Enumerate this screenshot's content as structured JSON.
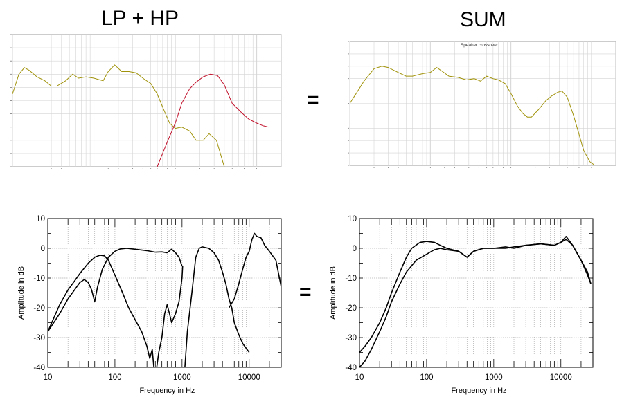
{
  "headings": {
    "left": "LP + HP",
    "right": "SUM"
  },
  "equals": [
    "=",
    "="
  ],
  "colors": {
    "yellow_trace": "#a0920a",
    "red_trace": "#c0102a",
    "black_trace": "#000000",
    "grid": "#d4d4d4"
  },
  "chart_data": [
    {
      "id": "top-left",
      "type": "line",
      "title": "",
      "xscale": "log",
      "xlim": [
        10,
        20000
      ],
      "ylim": [
        0,
        1
      ],
      "y_note": "unreadable tick labels; normalized vertical scale",
      "series": [
        {
          "color": "#a0920a",
          "points": [
            [
              10,
              0.55
            ],
            [
              12,
              0.7
            ],
            [
              14,
              0.75
            ],
            [
              16,
              0.73
            ],
            [
              20,
              0.68
            ],
            [
              25,
              0.65
            ],
            [
              30,
              0.61
            ],
            [
              35,
              0.61
            ],
            [
              45,
              0.65
            ],
            [
              55,
              0.7
            ],
            [
              65,
              0.67
            ],
            [
              80,
              0.68
            ],
            [
              100,
              0.67
            ],
            [
              130,
              0.65
            ],
            [
              150,
              0.72
            ],
            [
              180,
              0.77
            ],
            [
              220,
              0.72
            ],
            [
              270,
              0.72
            ],
            [
              330,
              0.71
            ],
            [
              420,
              0.66
            ],
            [
              500,
              0.63
            ],
            [
              600,
              0.55
            ],
            [
              700,
              0.45
            ],
            [
              850,
              0.33
            ],
            [
              1000,
              0.29
            ],
            [
              1200,
              0.3
            ],
            [
              1500,
              0.27
            ],
            [
              1800,
              0.2
            ],
            [
              2200,
              0.2
            ],
            [
              2600,
              0.25
            ],
            [
              3200,
              0.2
            ],
            [
              4000,
              0.0
            ]
          ]
        },
        {
          "color": "#c0102a",
          "points": [
            [
              600,
              0.0
            ],
            [
              800,
              0.19
            ],
            [
              1000,
              0.33
            ],
            [
              1200,
              0.48
            ],
            [
              1500,
              0.59
            ],
            [
              1800,
              0.64
            ],
            [
              2200,
              0.68
            ],
            [
              2700,
              0.7
            ],
            [
              3300,
              0.69
            ],
            [
              4000,
              0.62
            ],
            [
              5000,
              0.48
            ],
            [
              6500,
              0.41
            ],
            [
              8000,
              0.36
            ],
            [
              10000,
              0.33
            ],
            [
              12000,
              0.31
            ],
            [
              14000,
              0.3
            ]
          ]
        }
      ]
    },
    {
      "id": "top-right",
      "type": "line",
      "title": "Speaker crossover",
      "xscale": "log",
      "xlim": [
        10,
        20000
      ],
      "ylim": [
        0,
        1
      ],
      "y_note": "unreadable tick labels; normalized vertical scale",
      "series": [
        {
          "color": "#a0920a",
          "points": [
            [
              10,
              0.5
            ],
            [
              12,
              0.58
            ],
            [
              15,
              0.68
            ],
            [
              20,
              0.78
            ],
            [
              25,
              0.8
            ],
            [
              30,
              0.79
            ],
            [
              40,
              0.75
            ],
            [
              50,
              0.72
            ],
            [
              60,
              0.72
            ],
            [
              80,
              0.74
            ],
            [
              100,
              0.75
            ],
            [
              120,
              0.79
            ],
            [
              140,
              0.76
            ],
            [
              170,
              0.72
            ],
            [
              220,
              0.71
            ],
            [
              280,
              0.69
            ],
            [
              350,
              0.7
            ],
            [
              420,
              0.68
            ],
            [
              500,
              0.72
            ],
            [
              600,
              0.7
            ],
            [
              700,
              0.69
            ],
            [
              850,
              0.66
            ],
            [
              1000,
              0.58
            ],
            [
              1200,
              0.48
            ],
            [
              1400,
              0.42
            ],
            [
              1600,
              0.39
            ],
            [
              1800,
              0.39
            ],
            [
              2200,
              0.45
            ],
            [
              2700,
              0.52
            ],
            [
              3200,
              0.56
            ],
            [
              3800,
              0.59
            ],
            [
              4300,
              0.6
            ],
            [
              5000,
              0.55
            ],
            [
              6000,
              0.4
            ],
            [
              7000,
              0.25
            ],
            [
              8000,
              0.12
            ],
            [
              9500,
              0.03
            ],
            [
              11000,
              0.0
            ]
          ]
        }
      ]
    },
    {
      "id": "bottom-left",
      "type": "line",
      "title": "",
      "xlabel": "Frequency in Hz",
      "ylabel": "Amplitude in dB",
      "xscale": "log",
      "xlim": [
        10,
        30000
      ],
      "ylim": [
        -40,
        10
      ],
      "xticks": [
        10,
        100,
        1000,
        10000
      ],
      "xtick_labels": [
        "10",
        "100",
        "1000",
        "10000"
      ],
      "yticks": [
        -40,
        -30,
        -20,
        -10,
        0,
        10
      ],
      "ytick_labels": [
        "-40",
        "-30",
        "-20",
        "-10",
        "0",
        "10"
      ],
      "series": [
        {
          "points": [
            [
              10,
              -28
            ],
            [
              15,
              -22
            ],
            [
              20,
              -17
            ],
            [
              25,
              -14
            ],
            [
              30,
              -11.5
            ],
            [
              35,
              -10.5
            ],
            [
              40,
              -11.5
            ],
            [
              45,
              -14
            ],
            [
              50,
              -18
            ],
            [
              55,
              -13
            ],
            [
              65,
              -7
            ],
            [
              80,
              -3
            ],
            [
              100,
              -1
            ],
            [
              120,
              -0.2
            ],
            [
              150,
              0
            ],
            [
              200,
              -0.3
            ],
            [
              300,
              -0.8
            ],
            [
              400,
              -1.3
            ],
            [
              500,
              -1.2
            ],
            [
              600,
              -1.5
            ],
            [
              700,
              -0.3
            ],
            [
              800,
              -1.5
            ],
            [
              900,
              -3
            ],
            [
              1000,
              -6
            ]
          ]
        },
        {
          "points": [
            [
              10,
              -28
            ],
            [
              15,
              -19
            ],
            [
              20,
              -14
            ],
            [
              25,
              -11
            ],
            [
              30,
              -8.5
            ],
            [
              40,
              -5
            ],
            [
              50,
              -3
            ],
            [
              60,
              -2.3
            ],
            [
              70,
              -2.5
            ],
            [
              80,
              -4
            ],
            [
              100,
              -9
            ],
            [
              130,
              -15
            ],
            [
              160,
              -20
            ],
            [
              200,
              -24
            ],
            [
              250,
              -28
            ],
            [
              300,
              -33
            ],
            [
              330,
              -37
            ],
            [
              360,
              -34
            ],
            [
              380,
              -40
            ]
          ]
        },
        {
          "points": [
            [
              420,
              -40
            ],
            [
              450,
              -35
            ],
            [
              500,
              -30
            ],
            [
              550,
              -22
            ],
            [
              600,
              -19
            ],
            [
              650,
              -22
            ],
            [
              700,
              -25
            ],
            [
              800,
              -22
            ],
            [
              900,
              -18
            ],
            [
              1000,
              -10
            ],
            [
              1020,
              -6
            ]
          ]
        },
        {
          "points": [
            [
              1100,
              -40
            ],
            [
              1200,
              -28
            ],
            [
              1400,
              -15
            ],
            [
              1600,
              -3
            ],
            [
              1800,
              0
            ],
            [
              2000,
              0.5
            ],
            [
              2500,
              0
            ],
            [
              3000,
              -1.5
            ],
            [
              3500,
              -4
            ],
            [
              4000,
              -8
            ],
            [
              4500,
              -12
            ],
            [
              5000,
              -17
            ],
            [
              5500,
              -20
            ],
            [
              6000,
              -25
            ],
            [
              7000,
              -29
            ],
            [
              8000,
              -32
            ],
            [
              10000,
              -35
            ]
          ]
        },
        {
          "points": [
            [
              5000,
              -20
            ],
            [
              6000,
              -17
            ],
            [
              7000,
              -12
            ],
            [
              8000,
              -7
            ],
            [
              9000,
              -3
            ],
            [
              10000,
              -1
            ],
            [
              11000,
              3
            ],
            [
              12000,
              5
            ],
            [
              13000,
              4
            ],
            [
              15000,
              3.5
            ],
            [
              17000,
              1
            ],
            [
              20000,
              -1
            ],
            [
              25000,
              -4
            ],
            [
              30000,
              -13
            ]
          ]
        }
      ]
    },
    {
      "id": "bottom-right",
      "type": "line",
      "title": "",
      "xlabel": "Frequency in Hz",
      "ylabel": "Amplitude in dB",
      "xscale": "log",
      "xlim": [
        10,
        30000
      ],
      "ylim": [
        -40,
        10
      ],
      "xticks": [
        10,
        100,
        1000,
        10000
      ],
      "xtick_labels": [
        "10",
        "100",
        "1000",
        "10000"
      ],
      "yticks": [
        -40,
        -30,
        -20,
        -10,
        0,
        10
      ],
      "ytick_labels": [
        "-40",
        "-30",
        "-20",
        "-10",
        "0",
        "10"
      ],
      "series": [
        {
          "points": [
            [
              10,
              -35
            ],
            [
              12,
              -33
            ],
            [
              15,
              -30
            ],
            [
              20,
              -25
            ],
            [
              25,
              -20
            ],
            [
              30,
              -15
            ],
            [
              40,
              -8
            ],
            [
              50,
              -3
            ],
            [
              60,
              0
            ],
            [
              80,
              2
            ],
            [
              100,
              2.3
            ],
            [
              130,
              2
            ],
            [
              160,
              1
            ],
            [
              200,
              0
            ],
            [
              300,
              -1
            ],
            [
              400,
              -3
            ],
            [
              500,
              -1
            ],
            [
              700,
              0
            ],
            [
              1000,
              0
            ],
            [
              1500,
              0.5
            ],
            [
              2000,
              0
            ],
            [
              3000,
              1
            ],
            [
              5000,
              1.5
            ],
            [
              8000,
              1
            ],
            [
              10000,
              2
            ],
            [
              12000,
              4
            ],
            [
              15000,
              1
            ],
            [
              20000,
              -4
            ],
            [
              25000,
              -8
            ],
            [
              28000,
              -12
            ]
          ]
        },
        {
          "points": [
            [
              10,
              -40
            ],
            [
              12,
              -38
            ],
            [
              15,
              -34
            ],
            [
              20,
              -28
            ],
            [
              25,
              -23
            ],
            [
              30,
              -18
            ],
            [
              40,
              -12
            ],
            [
              50,
              -8
            ],
            [
              70,
              -4
            ],
            [
              100,
              -2
            ],
            [
              130,
              -0.5
            ],
            [
              160,
              0
            ],
            [
              200,
              -0.5
            ],
            [
              300,
              -1
            ],
            [
              400,
              -3
            ],
            [
              500,
              -1
            ],
            [
              700,
              0
            ],
            [
              1000,
              0
            ],
            [
              1500,
              0
            ],
            [
              2000,
              0.5
            ],
            [
              3000,
              1
            ],
            [
              5000,
              1.5
            ],
            [
              8000,
              1
            ],
            [
              10000,
              2
            ],
            [
              12000,
              3
            ],
            [
              15000,
              1
            ],
            [
              20000,
              -4
            ],
            [
              25000,
              -9
            ],
            [
              28000,
              -12
            ]
          ]
        }
      ]
    }
  ]
}
